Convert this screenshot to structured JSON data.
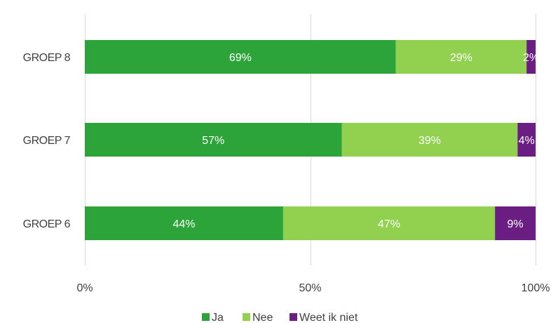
{
  "chart_data": {
    "type": "bar",
    "orientation": "horizontal",
    "stacked": true,
    "categories": [
      "GROEP 8",
      "GROEP 7",
      "GROEP 6"
    ],
    "series": [
      {
        "name": "Ja",
        "color": "#2ca43a",
        "values": [
          69,
          57,
          44
        ],
        "labels": [
          "69%",
          "57%",
          "44%"
        ]
      },
      {
        "name": "Nee",
        "color": "#92d050",
        "values": [
          29,
          39,
          47
        ],
        "labels": [
          "29%",
          "39%",
          "47%"
        ]
      },
      {
        "name": "Weet ik niet",
        "color": "#6b1e82",
        "values": [
          2,
          4,
          9
        ],
        "labels": [
          "2%",
          "4%",
          "9%"
        ]
      }
    ],
    "x_ticks": [
      {
        "value": 0,
        "label": "0%"
      },
      {
        "value": 50,
        "label": "50%"
      },
      {
        "value": 100,
        "label": "100%"
      }
    ],
    "xlim": [
      0,
      100
    ],
    "grid": true,
    "legend_position": "bottom"
  }
}
